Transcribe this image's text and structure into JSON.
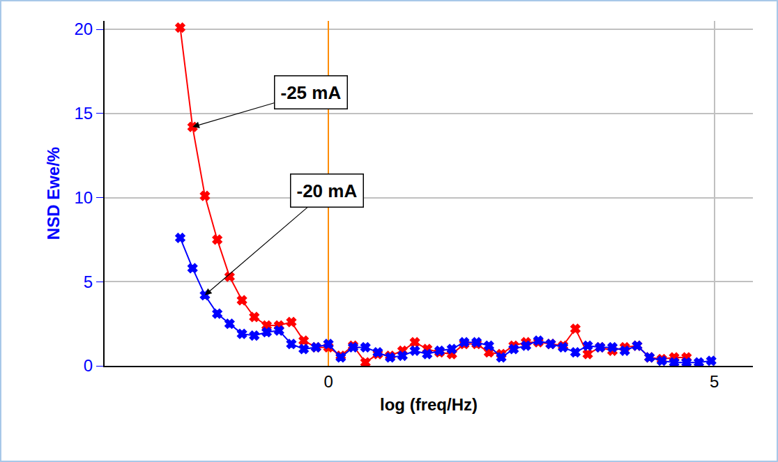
{
  "chart_data": {
    "type": "line",
    "x_label": "log (freq/Hz)",
    "y_label": "NSD Ewe/%",
    "x": [
      -1.92,
      -1.76,
      -1.6,
      -1.44,
      -1.28,
      -1.12,
      -0.96,
      -0.8,
      -0.64,
      -0.48,
      -0.32,
      -0.16,
      0.0,
      0.16,
      0.32,
      0.48,
      0.64,
      0.8,
      0.96,
      1.12,
      1.28,
      1.44,
      1.6,
      1.76,
      1.92,
      2.08,
      2.24,
      2.4,
      2.56,
      2.72,
      2.88,
      3.04,
      3.2,
      3.36,
      3.52,
      3.68,
      3.84,
      4.0,
      4.16,
      4.32,
      4.48,
      4.64,
      4.8,
      4.96
    ],
    "series": [
      {
        "name": "-25 mA",
        "color": "#ff0000",
        "marker": "x",
        "values": [
          20.1,
          14.2,
          10.1,
          7.5,
          5.3,
          3.9,
          2.9,
          2.4,
          2.4,
          2.6,
          1.5,
          1.1,
          1.1,
          0.6,
          1.2,
          0.2,
          0.7,
          0.6,
          0.9,
          1.4,
          1.0,
          0.8,
          0.7,
          1.3,
          1.3,
          0.8,
          0.7,
          1.2,
          1.4,
          1.4,
          1.3,
          1.2,
          2.2,
          0.7,
          1.1,
          0.9,
          1.1,
          1.2,
          0.5,
          0.4,
          0.5,
          0.5,
          null,
          null
        ]
      },
      {
        "name": "-20 mA",
        "color": "#0000ff",
        "marker": "x",
        "values": [
          7.6,
          5.8,
          4.2,
          3.1,
          2.5,
          1.9,
          1.8,
          2.0,
          2.1,
          1.3,
          1.0,
          1.1,
          1.3,
          0.5,
          1.1,
          1.1,
          0.8,
          0.5,
          0.6,
          0.9,
          0.7,
          0.9,
          1.0,
          1.4,
          1.4,
          1.2,
          0.5,
          1.0,
          1.2,
          1.5,
          1.3,
          1.1,
          0.8,
          1.2,
          1.1,
          1.1,
          0.9,
          1.2,
          0.5,
          0.3,
          0.2,
          0.2,
          0.2,
          0.3
        ]
      }
    ],
    "annotations": [
      {
        "text": "-25 mA",
        "x": -1.76,
        "y": 14.2
      },
      {
        "text": "-20 mA",
        "x": -1.6,
        "y": 4.2
      }
    ],
    "xlim": [
      -2.9,
      5.5
    ],
    "xticks": [
      0,
      5
    ],
    "ylim": [
      0,
      20.5
    ],
    "yticks": [
      0,
      5,
      10,
      15,
      20
    ],
    "grid": true
  }
}
